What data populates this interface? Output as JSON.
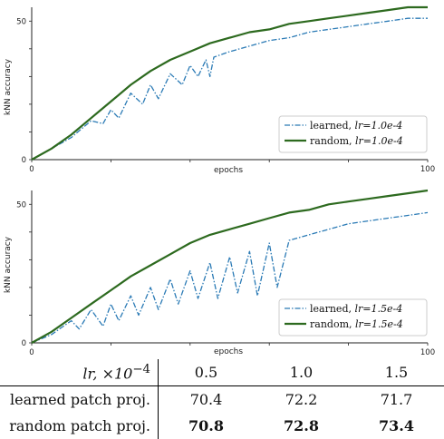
{
  "chart_data": [
    {
      "type": "line",
      "xlabel": "epochs",
      "ylabel": "kNN accuracy",
      "xlim": [
        0,
        100
      ],
      "ylim": [
        0,
        55
      ],
      "xticks": [
        "0",
        "100"
      ],
      "yticks": [
        "0",
        "50"
      ],
      "legend_placement": "bottom-right",
      "series": [
        {
          "name": "learned, lr=1.0e-4",
          "legend_label": "learned,",
          "legend_lr": "lr=1.0e-4",
          "color": "#2a7ab5",
          "style": "dashdot",
          "x": [
            0,
            5,
            10,
            15,
            18,
            20,
            22,
            25,
            28,
            30,
            32,
            35,
            38,
            40,
            42,
            44,
            45,
            46,
            50,
            55,
            60,
            65,
            70,
            75,
            80,
            85,
            90,
            95,
            100
          ],
          "y": [
            0,
            4,
            8,
            14,
            13,
            18,
            15,
            24,
            20,
            27,
            22,
            31,
            27,
            34,
            30,
            36,
            30,
            37,
            39,
            41,
            43,
            44,
            46,
            47,
            48,
            49,
            50,
            51,
            51
          ]
        },
        {
          "name": "random, lr=1.0e-4",
          "legend_label": "random,",
          "legend_lr": "lr=1.0e-4",
          "color": "#2d6a1f",
          "style": "solid",
          "x": [
            0,
            5,
            10,
            15,
            20,
            25,
            30,
            35,
            40,
            45,
            50,
            55,
            60,
            65,
            70,
            75,
            80,
            85,
            90,
            95,
            100
          ],
          "y": [
            0,
            4,
            9,
            15,
            21,
            27,
            32,
            36,
            39,
            42,
            44,
            46,
            47,
            49,
            50,
            51,
            52,
            53,
            54,
            55,
            55
          ]
        }
      ]
    },
    {
      "type": "line",
      "xlabel": "epochs",
      "ylabel": "kNN accuracy",
      "xlim": [
        0,
        100
      ],
      "ylim": [
        0,
        55
      ],
      "xticks": [
        "0",
        "100"
      ],
      "yticks": [
        "0",
        "50"
      ],
      "legend_placement": "bottom-right",
      "series": [
        {
          "name": "learned, lr=1.5e-4",
          "legend_label": "learned,",
          "legend_lr": "lr=1.5e-4",
          "color": "#2a7ab5",
          "style": "dashdot",
          "x": [
            0,
            5,
            10,
            12,
            15,
            18,
            20,
            22,
            25,
            27,
            30,
            32,
            35,
            37,
            40,
            42,
            45,
            47,
            50,
            52,
            55,
            57,
            60,
            62,
            65,
            70,
            75,
            80,
            85,
            90,
            95,
            100
          ],
          "y": [
            0,
            3,
            8,
            5,
            12,
            6,
            14,
            8,
            17,
            10,
            20,
            12,
            23,
            14,
            26,
            16,
            29,
            16,
            31,
            18,
            33,
            17,
            36,
            20,
            37,
            39,
            41,
            43,
            44,
            45,
            46,
            47
          ]
        },
        {
          "name": "random, lr=1.5e-4",
          "legend_label": "random,",
          "legend_lr": "lr=1.5e-4",
          "color": "#2d6a1f",
          "style": "solid",
          "x": [
            0,
            5,
            10,
            15,
            20,
            25,
            30,
            35,
            40,
            45,
            50,
            55,
            60,
            65,
            70,
            75,
            80,
            85,
            90,
            95,
            100
          ],
          "y": [
            0,
            4,
            9,
            14,
            19,
            24,
            28,
            32,
            36,
            39,
            41,
            43,
            45,
            47,
            48,
            50,
            51,
            52,
            53,
            54,
            55
          ]
        }
      ]
    },
    {
      "type": "table",
      "header_label": "lr, ×10",
      "header_exponent": "−4",
      "columns": [
        "0.5",
        "1.0",
        "1.5"
      ],
      "rows": [
        {
          "label": "learned patch proj.",
          "values": [
            "70.4",
            "72.2",
            "71.7"
          ],
          "bold": [
            false,
            false,
            false
          ]
        },
        {
          "label": "random patch proj.",
          "values": [
            "70.8",
            "72.8",
            "73.4"
          ],
          "bold": [
            true,
            true,
            true
          ]
        }
      ]
    }
  ]
}
